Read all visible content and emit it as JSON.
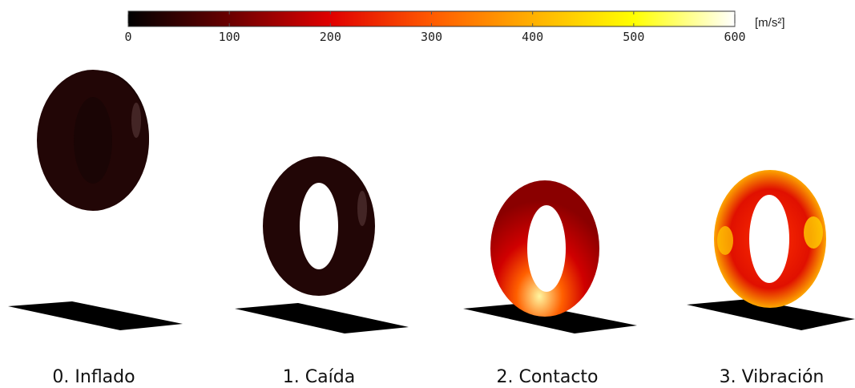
{
  "colorbar": {
    "lim": [
      0,
      600
    ],
    "ticks": [
      0,
      100,
      200,
      300,
      400,
      500,
      600
    ],
    "unit": "[m/s²]",
    "colors": [
      "#000000",
      "#6a0000",
      "#e00000",
      "#ff5a00",
      "#ffb000",
      "#ffff00",
      "#ffffff"
    ]
  },
  "panels": [
    {
      "label": "0. Inflado"
    },
    {
      "label": "1. Caída"
    },
    {
      "label": "2. Contacto"
    },
    {
      "label": "3. Vibración"
    }
  ]
}
